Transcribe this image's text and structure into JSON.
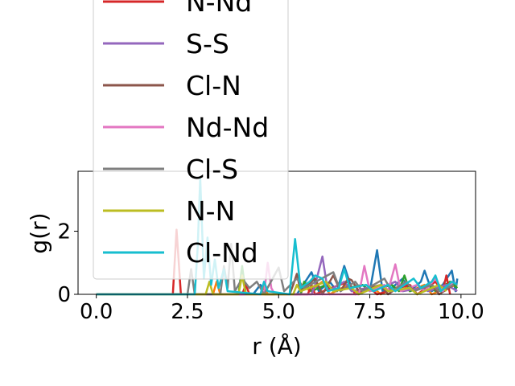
{
  "chart_data": {
    "type": "line",
    "title": "",
    "xlabel": "r (Å)",
    "ylabel": "g(r)",
    "xlim": [
      -0.5,
      10.4
    ],
    "ylim": [
      0,
      3.9
    ],
    "xticks": [
      "0.0",
      "2.5",
      "5.0",
      "7.5",
      "10.0"
    ],
    "yticks": [
      "0",
      "2"
    ],
    "grid": false,
    "legend_position": "upper-left, overflowing above the plot area",
    "legend": [
      "N-Nd",
      "S-S",
      "Cl-N",
      "Nd-Nd",
      "Cl-S",
      "N-N",
      "Cl-Nd"
    ],
    "series": [
      {
        "color": "#1f77b4",
        "points": [
          [
            0,
            0
          ],
          [
            4.3,
            0
          ],
          [
            4.5,
            0.3
          ],
          [
            4.7,
            0
          ],
          [
            5.5,
            0
          ],
          [
            5.9,
            0.7
          ],
          [
            6.1,
            0.1
          ],
          [
            6.4,
            0.4
          ],
          [
            6.6,
            0.1
          ],
          [
            6.8,
            0.9
          ],
          [
            7.0,
            0.2
          ],
          [
            7.3,
            0.3
          ],
          [
            7.5,
            0.1
          ],
          [
            7.7,
            1.4
          ],
          [
            7.85,
            0.1
          ],
          [
            8.1,
            0.2
          ],
          [
            8.4,
            0.5
          ],
          [
            8.6,
            0.1
          ],
          [
            8.9,
            0.4
          ],
          [
            9.0,
            0.75
          ],
          [
            9.2,
            0.1
          ],
          [
            9.5,
            0.3
          ],
          [
            9.75,
            0.75
          ],
          [
            9.85,
            0.1
          ],
          [
            9.9,
            0.5
          ]
        ]
      },
      {
        "color": "#ff7f0e",
        "points": [
          [
            0,
            0
          ],
          [
            3.2,
            0
          ],
          [
            3.3,
            0.4
          ],
          [
            3.4,
            0
          ],
          [
            4.5,
            0
          ],
          [
            4.6,
            0.3
          ],
          [
            4.7,
            0
          ],
          [
            5.6,
            0
          ],
          [
            5.7,
            0.3
          ],
          [
            5.85,
            0.1
          ],
          [
            6.2,
            0.4
          ],
          [
            6.4,
            0
          ],
          [
            6.9,
            0.3
          ],
          [
            7.1,
            0.1
          ],
          [
            7.6,
            0.2
          ],
          [
            7.8,
            0
          ],
          [
            8.4,
            0.3
          ],
          [
            8.6,
            0.1
          ],
          [
            9.0,
            0.3
          ],
          [
            9.2,
            0
          ],
          [
            9.6,
            0.2
          ],
          [
            9.9,
            0.3
          ]
        ]
      },
      {
        "color": "#2ca02c",
        "points": [
          [
            0,
            0
          ],
          [
            3.9,
            0
          ],
          [
            4.0,
            0.9
          ],
          [
            4.1,
            0
          ],
          [
            5.6,
            0
          ],
          [
            5.7,
            0.4
          ],
          [
            5.9,
            0.1
          ],
          [
            6.3,
            0.3
          ],
          [
            6.5,
            0.1
          ],
          [
            7.3,
            0.3
          ],
          [
            7.5,
            0.1
          ],
          [
            8.1,
            0.3
          ],
          [
            8.3,
            0.1
          ],
          [
            8.45,
            0.6
          ],
          [
            8.6,
            0.1
          ],
          [
            9.1,
            0.3
          ],
          [
            9.3,
            0.1
          ],
          [
            9.7,
            0.4
          ],
          [
            9.9,
            0.2
          ]
        ]
      },
      {
        "color": "#d62728",
        "points": [
          [
            0,
            0
          ],
          [
            2.1,
            0
          ],
          [
            2.2,
            2.05
          ],
          [
            2.32,
            0
          ],
          [
            4.0,
            0
          ],
          [
            4.1,
            0.3
          ],
          [
            4.2,
            0
          ],
          [
            5.8,
            0
          ],
          [
            5.9,
            0.3
          ],
          [
            6.0,
            0
          ],
          [
            6.9,
            0.4
          ],
          [
            7.1,
            0
          ],
          [
            7.5,
            0.2
          ],
          [
            7.7,
            0
          ],
          [
            8.6,
            0.3
          ],
          [
            8.8,
            0
          ],
          [
            9.3,
            0.4
          ],
          [
            9.5,
            0.1
          ],
          [
            9.6,
            0.6
          ],
          [
            9.7,
            0
          ]
        ]
      },
      {
        "color": "#9467bd",
        "points": [
          [
            0,
            0
          ],
          [
            5.9,
            0
          ],
          [
            6.0,
            0.3
          ],
          [
            6.2,
            1.2
          ],
          [
            6.35,
            0.1
          ],
          [
            6.8,
            0.4
          ],
          [
            7.0,
            0.1
          ],
          [
            7.4,
            0.2
          ],
          [
            7.6,
            0.1
          ],
          [
            8.2,
            0.4
          ],
          [
            8.4,
            0.1
          ],
          [
            8.9,
            0.2
          ],
          [
            9.1,
            0.1
          ],
          [
            9.6,
            0.3
          ],
          [
            9.9,
            0.1
          ]
        ]
      },
      {
        "color": "#8c564b",
        "points": [
          [
            0,
            0
          ],
          [
            5.3,
            0
          ],
          [
            5.4,
            0.3
          ],
          [
            5.5,
            0.65
          ],
          [
            5.6,
            0.1
          ],
          [
            6.0,
            0.5
          ],
          [
            6.2,
            0
          ],
          [
            6.5,
            0.6
          ],
          [
            6.7,
            0.1
          ],
          [
            6.9,
            0.5
          ],
          [
            7.0,
            0.45
          ],
          [
            7.2,
            0.1
          ],
          [
            7.8,
            0.3
          ],
          [
            8.0,
            0
          ],
          [
            8.5,
            0.4
          ],
          [
            8.7,
            0.1
          ],
          [
            9.2,
            0.3
          ],
          [
            9.4,
            0
          ],
          [
            9.8,
            0.3
          ]
        ]
      },
      {
        "color": "#e377c2",
        "points": [
          [
            0,
            0
          ],
          [
            4.6,
            0
          ],
          [
            4.7,
            1.0
          ],
          [
            4.8,
            0.2
          ],
          [
            4.9,
            0
          ],
          [
            7.2,
            0
          ],
          [
            7.35,
            0.9
          ],
          [
            7.5,
            0.1
          ],
          [
            7.9,
            0.3
          ],
          [
            8.0,
            0.1
          ],
          [
            8.2,
            0.95
          ],
          [
            8.35,
            0.1
          ],
          [
            8.8,
            0.3
          ],
          [
            9.0,
            0.1
          ],
          [
            9.3,
            0.5
          ],
          [
            9.5,
            0.1
          ],
          [
            9.8,
            0.4
          ]
        ]
      },
      {
        "color": "#7f7f7f",
        "points": [
          [
            0,
            0
          ],
          [
            2.5,
            0
          ],
          [
            2.6,
            0.8
          ],
          [
            2.7,
            0
          ],
          [
            3.4,
            0
          ],
          [
            3.5,
            0.9
          ],
          [
            3.6,
            0.2
          ],
          [
            3.7,
            1.6
          ],
          [
            3.8,
            0.1
          ],
          [
            4.0,
            0.5
          ],
          [
            4.2,
            0.2
          ],
          [
            4.4,
            0.4
          ],
          [
            4.6,
            0
          ],
          [
            5.0,
            0.85
          ],
          [
            5.15,
            0.1
          ],
          [
            5.5,
            0.5
          ],
          [
            5.7,
            0.2
          ],
          [
            6.5,
            0.7
          ],
          [
            6.7,
            0.1
          ],
          [
            7.1,
            0.4
          ],
          [
            7.3,
            0.1
          ],
          [
            7.9,
            0.5
          ],
          [
            8.1,
            0.1
          ],
          [
            8.5,
            0.4
          ],
          [
            8.7,
            0.1
          ],
          [
            9.2,
            0.3
          ],
          [
            9.4,
            0.1
          ],
          [
            9.8,
            0.3
          ]
        ]
      },
      {
        "color": "#bcbd22",
        "points": [
          [
            0,
            0
          ],
          [
            3.0,
            0
          ],
          [
            3.1,
            0.4
          ],
          [
            3.2,
            0
          ],
          [
            3.9,
            0
          ],
          [
            4.0,
            0.6
          ],
          [
            4.1,
            0
          ],
          [
            5.4,
            0
          ],
          [
            5.5,
            0.3
          ],
          [
            5.6,
            0.1
          ],
          [
            6.3,
            0.4
          ],
          [
            6.5,
            0.1
          ],
          [
            7.0,
            0.2
          ],
          [
            7.2,
            0
          ],
          [
            7.8,
            0.3
          ],
          [
            8.0,
            0.1
          ],
          [
            8.6,
            0.2
          ],
          [
            8.8,
            0
          ],
          [
            9.4,
            0.3
          ],
          [
            9.6,
            0.1
          ]
        ]
      },
      {
        "color": "#17becf",
        "points": [
          [
            0,
            0
          ],
          [
            2.7,
            0
          ],
          [
            2.78,
            1.5
          ],
          [
            2.85,
            3.7
          ],
          [
            2.95,
            0.5
          ],
          [
            3.05,
            1.8
          ],
          [
            3.15,
            0.3
          ],
          [
            3.25,
            1.1
          ],
          [
            3.35,
            0.2
          ],
          [
            3.5,
            0.8
          ],
          [
            3.6,
            0.1
          ],
          [
            4.5,
            0
          ],
          [
            4.6,
            0.4
          ],
          [
            4.7,
            0.1
          ],
          [
            5.3,
            0
          ],
          [
            5.45,
            1.75
          ],
          [
            5.6,
            0.2
          ],
          [
            5.85,
            0.4
          ],
          [
            6.0,
            0.6
          ],
          [
            6.2,
            0.5
          ],
          [
            6.35,
            0.1
          ],
          [
            6.65,
            0.2
          ],
          [
            6.8,
            0.8
          ],
          [
            6.95,
            0.2
          ],
          [
            7.4,
            0.3
          ],
          [
            7.6,
            0.1
          ],
          [
            8.0,
            0.3
          ],
          [
            8.2,
            0.1
          ],
          [
            8.7,
            0.5
          ],
          [
            8.9,
            0.2
          ],
          [
            9.2,
            0.4
          ],
          [
            9.3,
            0.6
          ],
          [
            9.45,
            0.1
          ],
          [
            9.75,
            0.4
          ],
          [
            9.9,
            0.3
          ]
        ]
      }
    ]
  }
}
